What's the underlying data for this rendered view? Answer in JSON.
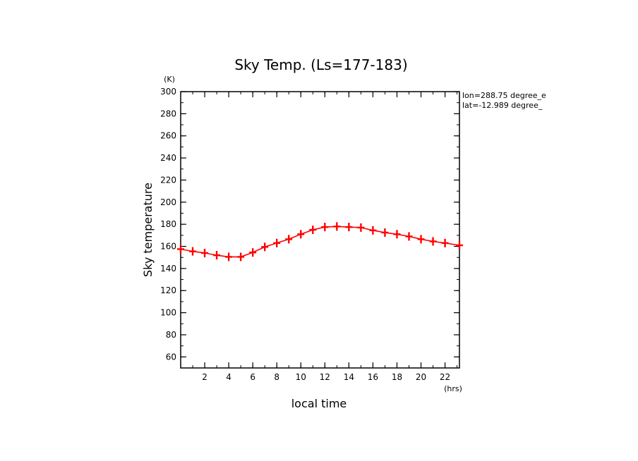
{
  "chart_data": {
    "type": "line",
    "title": "Sky Temp. (Ls=177-183)",
    "xlabel": "local time",
    "ylabel": "Sky temperature",
    "x_unit": "(hrs)",
    "y_unit": "(K)",
    "xlim": [
      0,
      23.2
    ],
    "ylim": [
      50,
      300
    ],
    "x_ticks": [
      2,
      4,
      6,
      8,
      10,
      12,
      14,
      16,
      18,
      20,
      22
    ],
    "y_ticks": [
      60,
      80,
      100,
      120,
      140,
      160,
      180,
      200,
      220,
      240,
      260,
      280,
      300
    ],
    "annotations": [
      "lon=288.75 degree_e",
      "lat=-12.989 degree_"
    ],
    "series": [
      {
        "color": "#ff0000",
        "marker": "plus",
        "x": [
          0,
          1,
          2,
          3,
          4,
          5,
          6,
          7,
          8,
          9,
          10,
          11,
          12,
          13,
          14,
          15,
          16,
          17,
          18,
          19,
          20,
          21,
          22,
          23.2
        ],
        "y": [
          157.5,
          155.5,
          154,
          152,
          150.5,
          150.5,
          154.5,
          159.5,
          163,
          166.5,
          171,
          175,
          177.5,
          178,
          177.5,
          177,
          174.5,
          172.5,
          171,
          169,
          166.5,
          164.5,
          163,
          161
        ]
      }
    ]
  }
}
